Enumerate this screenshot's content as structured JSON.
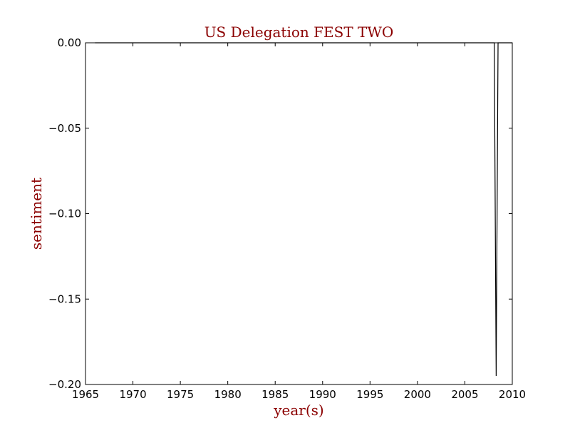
{
  "chart_data": {
    "type": "line",
    "title": "US Delegation FEST TWO",
    "xlabel": "year(s)",
    "ylabel": "sentiment",
    "xlim": [
      1965,
      2010
    ],
    "ylim": [
      -0.2,
      0.0
    ],
    "xticks": [
      1965,
      1970,
      1975,
      1980,
      1985,
      1990,
      1995,
      2000,
      2005,
      2010
    ],
    "xtick_labels": [
      "1965",
      "1970",
      "1975",
      "1980",
      "1985",
      "1990",
      "1995",
      "2000",
      "2005",
      "2010"
    ],
    "yticks": [
      0.0,
      -0.05,
      -0.1,
      -0.15,
      -0.2
    ],
    "ytick_labels": [
      "0.00",
      "−0.05",
      "−0.10",
      "−0.15",
      "−0.20"
    ],
    "grid": false,
    "series": [
      {
        "color": "#000000",
        "x": [
          1966,
          2008.1,
          2008.3,
          2008.5,
          2010
        ],
        "y": [
          0.0,
          0.0,
          -0.195,
          0.0,
          0.0
        ]
      }
    ],
    "colors": {
      "title": "#8b0000",
      "axis_label": "#8b0000",
      "line": "#000000",
      "frame": "#000000",
      "background": "#ffffff"
    }
  }
}
